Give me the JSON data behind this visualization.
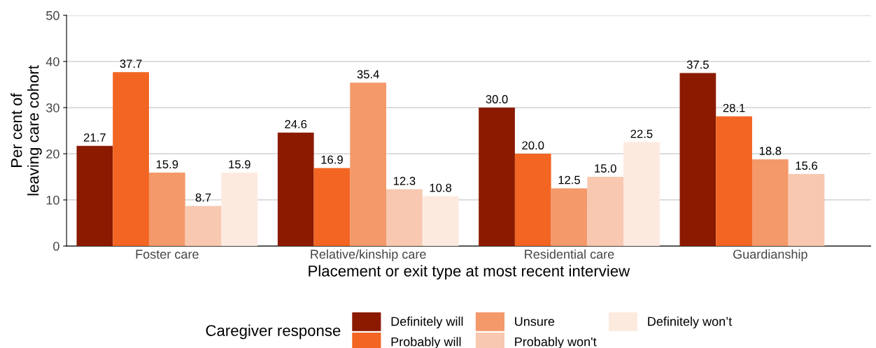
{
  "chart_data": {
    "type": "bar",
    "categories": [
      "Foster care",
      "Relative/kinship care",
      "Residential care",
      "Guardianship"
    ],
    "xlabel": "Placement or exit type at most recent interview",
    "ylabel": "Per cent of\nleaving care cohort",
    "legend_title": "Caregiver response",
    "series": [
      {
        "name": "Definitely will",
        "color": "#8b1a00",
        "values": [
          21.7,
          24.6,
          30.0,
          37.5
        ]
      },
      {
        "name": "Probably will",
        "color": "#f26522",
        "values": [
          37.7,
          16.9,
          20.0,
          28.1
        ]
      },
      {
        "name": "Unsure",
        "color": "#f4996a",
        "values": [
          15.9,
          35.4,
          12.5,
          18.8
        ]
      },
      {
        "name": "Probably won't",
        "color": "#f8c8b0",
        "values": [
          8.7,
          12.3,
          15.0,
          15.6
        ]
      },
      {
        "name": "Definitely won’t",
        "color": "#fdeadf",
        "values": [
          15.9,
          10.8,
          22.5,
          null
        ]
      }
    ],
    "value_labels": [
      [
        "21.7",
        "24.6",
        "30.0",
        "37.5"
      ],
      [
        "37.7",
        "16.9",
        "20.0",
        "28.1"
      ],
      [
        "15.9",
        "35.4",
        "12.5",
        "18.8"
      ],
      [
        "8.7",
        "12.3",
        "15.0",
        "15.6"
      ],
      [
        "15.9",
        "10.8",
        "22.5",
        null
      ]
    ],
    "ylim": [
      0,
      50
    ],
    "yticks": [
      0,
      10,
      20,
      30,
      40,
      50
    ],
    "grid": "y",
    "legend": "bottom"
  }
}
